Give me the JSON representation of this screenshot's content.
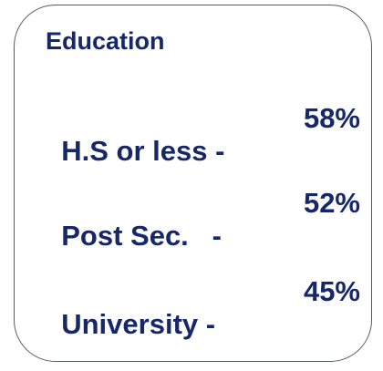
{
  "title": "Education",
  "rows": [
    {
      "label": "H.S or less -",
      "value": "58%"
    },
    {
      "label": "Post Sec.   -",
      "value": "52%"
    },
    {
      "label": "University -",
      "value": "45%"
    }
  ]
}
